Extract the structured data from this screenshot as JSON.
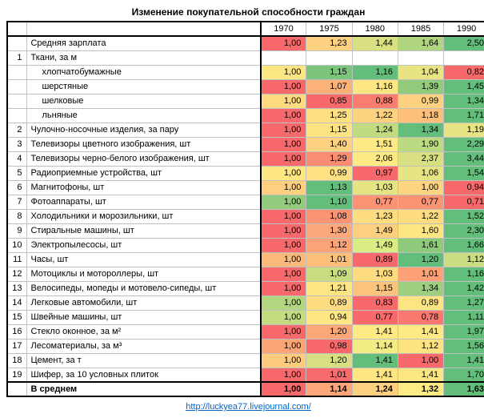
{
  "title": "Изменение покупательной способности граждан",
  "years": [
    "1970",
    "1975",
    "1980",
    "1985",
    "1990"
  ],
  "rows": [
    {
      "n": "",
      "label": "Средняя зарплата",
      "indent": 0,
      "vals": [
        {
          "v": "1,00",
          "c": "#f8696b"
        },
        {
          "v": "1,23",
          "c": "#fdd17f"
        },
        {
          "v": "1,44",
          "c": "#d8e082"
        },
        {
          "v": "1,64",
          "c": "#b0d580"
        },
        {
          "v": "2,50",
          "c": "#63be7b"
        }
      ]
    },
    {
      "n": "1",
      "label": "Ткани, за м",
      "indent": 0,
      "vals": [
        {
          "v": "",
          "c": ""
        },
        {
          "v": "",
          "c": ""
        },
        {
          "v": "",
          "c": ""
        },
        {
          "v": "",
          "c": ""
        },
        {
          "v": "",
          "c": ""
        }
      ]
    },
    {
      "n": "",
      "label": "хлопчатобумажные",
      "indent": 1,
      "vals": [
        {
          "v": "1,00",
          "c": "#fbe683"
        },
        {
          "v": "1,15",
          "c": "#7dc57c"
        },
        {
          "v": "1,16",
          "c": "#63be7b"
        },
        {
          "v": "1,04",
          "c": "#e8e482"
        },
        {
          "v": "0,82",
          "c": "#f8696b"
        }
      ]
    },
    {
      "n": "",
      "label": "шерстяные",
      "indent": 1,
      "vals": [
        {
          "v": "1,00",
          "c": "#f8696b"
        },
        {
          "v": "1,07",
          "c": "#fcb179"
        },
        {
          "v": "1,16",
          "c": "#fee683"
        },
        {
          "v": "1,39",
          "c": "#93cb7d"
        },
        {
          "v": "1,45",
          "c": "#63be7b"
        }
      ]
    },
    {
      "n": "",
      "label": "шелковые",
      "indent": 1,
      "vals": [
        {
          "v": "1,00",
          "c": "#fedb81"
        },
        {
          "v": "0,85",
          "c": "#f8696b"
        },
        {
          "v": "0,88",
          "c": "#fa7e6f"
        },
        {
          "v": "0,99",
          "c": "#fdd17f"
        },
        {
          "v": "1,34",
          "c": "#63be7b"
        }
      ]
    },
    {
      "n": "",
      "label": "льняные",
      "indent": 1,
      "vals": [
        {
          "v": "1,00",
          "c": "#f8696b"
        },
        {
          "v": "1,25",
          "c": "#fee082"
        },
        {
          "v": "1,22",
          "c": "#fdd27f"
        },
        {
          "v": "1,18",
          "c": "#fcc07b"
        },
        {
          "v": "1,71",
          "c": "#63be7b"
        }
      ]
    },
    {
      "n": "2",
      "label": "Чулочно-носочные изделия, за пару",
      "indent": 0,
      "vals": [
        {
          "v": "1,00",
          "c": "#f8696b"
        },
        {
          "v": "1,15",
          "c": "#fee383"
        },
        {
          "v": "1,24",
          "c": "#c1db81"
        },
        {
          "v": "1,34",
          "c": "#63be7b"
        },
        {
          "v": "1,19",
          "c": "#e6e483"
        }
      ]
    },
    {
      "n": "3",
      "label": "Телевизоры цветного изображения, шт",
      "indent": 0,
      "vals": [
        {
          "v": "1,00",
          "c": "#f8696b"
        },
        {
          "v": "1,40",
          "c": "#fdd17f"
        },
        {
          "v": "1,51",
          "c": "#fee984"
        },
        {
          "v": "1,90",
          "c": "#bcda81"
        },
        {
          "v": "2,29",
          "c": "#63be7b"
        }
      ]
    },
    {
      "n": "4",
      "label": "Телевизоры черно-белого изображения, шт",
      "indent": 0,
      "vals": [
        {
          "v": "1,00",
          "c": "#f8696b"
        },
        {
          "v": "1,29",
          "c": "#fa8d71"
        },
        {
          "v": "2,06",
          "c": "#feea83"
        },
        {
          "v": "2,37",
          "c": "#d8e082"
        },
        {
          "v": "3,44",
          "c": "#63be7b"
        }
      ]
    },
    {
      "n": "5",
      "label": "Радиоприемные устройства, шт",
      "indent": 0,
      "vals": [
        {
          "v": "1,00",
          "c": "#fee683"
        },
        {
          "v": "0,99",
          "c": "#fee182"
        },
        {
          "v": "0,97",
          "c": "#f8696b"
        },
        {
          "v": "1,06",
          "c": "#e7e483"
        },
        {
          "v": "1,54",
          "c": "#63be7b"
        }
      ]
    },
    {
      "n": "6",
      "label": "Магнитофоны, шт",
      "indent": 0,
      "vals": [
        {
          "v": "1,00",
          "c": "#fdcf7f"
        },
        {
          "v": "1,13",
          "c": "#63be7b"
        },
        {
          "v": "1,03",
          "c": "#e5e483"
        },
        {
          "v": "1,00",
          "c": "#fdd580"
        },
        {
          "v": "0,94",
          "c": "#f8696b"
        }
      ]
    },
    {
      "n": "7",
      "label": "Фотоаппараты, шт",
      "indent": 0,
      "vals": [
        {
          "v": "1,00",
          "c": "#92cb7d"
        },
        {
          "v": "1,10",
          "c": "#63be7b"
        },
        {
          "v": "0,77",
          "c": "#fb9273"
        },
        {
          "v": "0,77",
          "c": "#fb9473"
        },
        {
          "v": "0,71",
          "c": "#f8696b"
        }
      ]
    },
    {
      "n": "8",
      "label": "Холодильники и морозильники, шт",
      "indent": 0,
      "vals": [
        {
          "v": "1,00",
          "c": "#f8696b"
        },
        {
          "v": "1,08",
          "c": "#fa9473"
        },
        {
          "v": "1,23",
          "c": "#fedd81"
        },
        {
          "v": "1,22",
          "c": "#fddb81"
        },
        {
          "v": "1,52",
          "c": "#63be7b"
        }
      ]
    },
    {
      "n": "9",
      "label": "Стиральные машины, шт",
      "indent": 0,
      "vals": [
        {
          "v": "1,00",
          "c": "#f8696b"
        },
        {
          "v": "1,30",
          "c": "#fca87a"
        },
        {
          "v": "1,49",
          "c": "#fdd07f"
        },
        {
          "v": "1,60",
          "c": "#fee683"
        },
        {
          "v": "2,30",
          "c": "#63be7b"
        }
      ]
    },
    {
      "n": "10",
      "label": "Электропылесосы, шт",
      "indent": 0,
      "vals": [
        {
          "v": "1,00",
          "c": "#f8696b"
        },
        {
          "v": "1,12",
          "c": "#fca477"
        },
        {
          "v": "1,49",
          "c": "#daed83"
        },
        {
          "v": "1,61",
          "c": "#8ec97c"
        },
        {
          "v": "1,66",
          "c": "#63be7b"
        }
      ]
    },
    {
      "n": "11",
      "label": "Часы, шт",
      "indent": 0,
      "vals": [
        {
          "v": "1,00",
          "c": "#feba7b"
        },
        {
          "v": "1,01",
          "c": "#fdc07b"
        },
        {
          "v": "0,89",
          "c": "#f8696b"
        },
        {
          "v": "1,20",
          "c": "#63be7b"
        },
        {
          "v": "1,12",
          "c": "#c9de82"
        }
      ]
    },
    {
      "n": "12",
      "label": "Мотоциклы и мотороллеры, шт",
      "indent": 0,
      "vals": [
        {
          "v": "1,00",
          "c": "#f8696b"
        },
        {
          "v": "1,09",
          "c": "#c9dc7f"
        },
        {
          "v": "1,03",
          "c": "#fddc81"
        },
        {
          "v": "1,01",
          "c": "#fea176"
        },
        {
          "v": "1,16",
          "c": "#63be7b"
        }
      ]
    },
    {
      "n": "13",
      "label": "Велосипеды, мопеды и мотовело-сипеды, шт",
      "indent": 0,
      "vals": [
        {
          "v": "1,00",
          "c": "#f8696b"
        },
        {
          "v": "1,21",
          "c": "#fde583"
        },
        {
          "v": "1,15",
          "c": "#fcc37c"
        },
        {
          "v": "1,34",
          "c": "#9dcf7e"
        },
        {
          "v": "1,42",
          "c": "#63be7b"
        }
      ]
    },
    {
      "n": "14",
      "label": "Легковые автомобили, шт",
      "indent": 0,
      "vals": [
        {
          "v": "1,00",
          "c": "#b3d780"
        },
        {
          "v": "0,89",
          "c": "#fedc81"
        },
        {
          "v": "0,83",
          "c": "#f8696b"
        },
        {
          "v": "0,89",
          "c": "#fee483"
        },
        {
          "v": "1,27",
          "c": "#63be7b"
        }
      ]
    },
    {
      "n": "15",
      "label": "Швейные машины, шт",
      "indent": 0,
      "vals": [
        {
          "v": "1,00",
          "c": "#c4dc80"
        },
        {
          "v": "0,94",
          "c": "#fee683"
        },
        {
          "v": "0,77",
          "c": "#f8696b"
        },
        {
          "v": "0,78",
          "c": "#f97970"
        },
        {
          "v": "1,11",
          "c": "#63be7b"
        }
      ]
    },
    {
      "n": "16",
      "label": "Стекло оконное, за м²",
      "indent": 0,
      "vals": [
        {
          "v": "1,00",
          "c": "#f8696b"
        },
        {
          "v": "1,20",
          "c": "#fca778"
        },
        {
          "v": "1,41",
          "c": "#feea83"
        },
        {
          "v": "1,41",
          "c": "#fee984"
        },
        {
          "v": "1,97",
          "c": "#63be7b"
        }
      ]
    },
    {
      "n": "17",
      "label": "Лесоматериалы, за м³",
      "indent": 0,
      "vals": [
        {
          "v": "1,00",
          "c": "#fba576"
        },
        {
          "v": "0,98",
          "c": "#f8696b"
        },
        {
          "v": "1,14",
          "c": "#f3eb83"
        },
        {
          "v": "1,12",
          "c": "#fde382"
        },
        {
          "v": "1,56",
          "c": "#63be7b"
        }
      ]
    },
    {
      "n": "18",
      "label": "Цемент, за т",
      "indent": 0,
      "vals": [
        {
          "v": "1,00",
          "c": "#fdca7e"
        },
        {
          "v": "1,20",
          "c": "#d7df82"
        },
        {
          "v": "1,41",
          "c": "#63be7b"
        },
        {
          "v": "1,00",
          "c": "#f8696b"
        },
        {
          "v": "1,41",
          "c": "#63be7b"
        }
      ]
    },
    {
      "n": "19",
      "label": "Шифер, за 10 условных плиток",
      "indent": 0,
      "vals": [
        {
          "v": "1,00",
          "c": "#f8696b"
        },
        {
          "v": "1,01",
          "c": "#f86b6c"
        },
        {
          "v": "1,41",
          "c": "#fee683"
        },
        {
          "v": "1,41",
          "c": "#fce683"
        },
        {
          "v": "1,70",
          "c": "#63be7b"
        }
      ]
    }
  ],
  "summary": {
    "label": "В среднем",
    "vals": [
      {
        "v": "1,00",
        "c": "#f8696b"
      },
      {
        "v": "1,14",
        "c": "#fca67a"
      },
      {
        "v": "1,24",
        "c": "#fdd07f"
      },
      {
        "v": "1,32",
        "c": "#feeb84"
      },
      {
        "v": "1,63",
        "c": "#63be7b"
      }
    ]
  },
  "link": "http://luckyea77.livejournal.com/"
}
